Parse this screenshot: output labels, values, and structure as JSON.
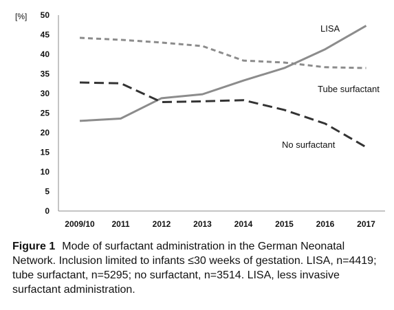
{
  "chart_data": {
    "type": "line",
    "categories": [
      "2009/10",
      "2011",
      "2012",
      "2013",
      "2014",
      "2015",
      "2016",
      "2017"
    ],
    "ylabel": "[%]",
    "ylim": [
      0,
      50
    ],
    "yticks": [
      0,
      5,
      10,
      15,
      20,
      25,
      30,
      35,
      40,
      45,
      50
    ],
    "grid": false,
    "series": [
      {
        "name": "LISA",
        "style": "solid",
        "color": "#8c8c8c",
        "values": [
          23.0,
          23.6,
          28.8,
          29.8,
          33.3,
          36.5,
          41.3,
          47.3
        ]
      },
      {
        "name": "Tube surfactant",
        "style": "dashed-short",
        "color": "#8c8c8c",
        "values": [
          44.2,
          43.7,
          43.0,
          42.1,
          38.4,
          37.9,
          36.7,
          36.5
        ]
      },
      {
        "name": "No surfactant",
        "style": "dashed-long",
        "color": "#333333",
        "values": [
          32.8,
          32.6,
          27.8,
          28.0,
          28.3,
          25.8,
          22.3,
          16.3
        ]
      }
    ]
  },
  "caption": {
    "label": "Figure 1",
    "text": "Mode of surfactant administration in the German Neonatal Network. Inclusion limited to infants ≤30 weeks of gestation. LISA, n=4419; tube surfactant, n=5295; no surfactant, n=3514. LISA, less invasive surfactant administration."
  }
}
